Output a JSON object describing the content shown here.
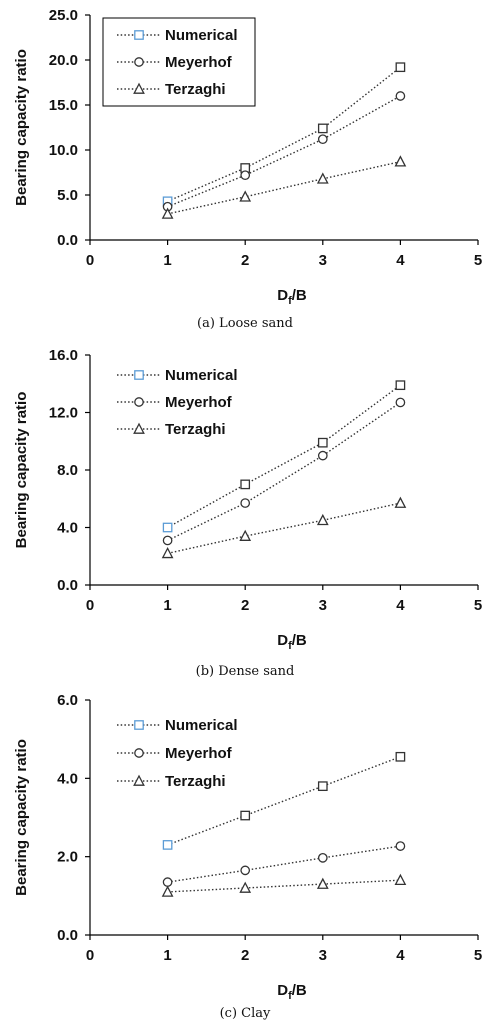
{
  "captions": [
    "(a) Loose sand",
    "(b) Dense sand",
    "(c) Clay"
  ],
  "chart_data": [
    {
      "type": "line",
      "caption": "(a) Loose sand",
      "xlabel_main": "D",
      "xlabel_sub": "f",
      "xlabel_tail": "/B",
      "ylabel": "Bearing capacity ratio",
      "xlim": [
        0,
        5
      ],
      "ylim": [
        0,
        25
      ],
      "x_ticks": [
        "0",
        "1",
        "2",
        "3",
        "4",
        "5"
      ],
      "y_ticks": [
        "0.0",
        "5.0",
        "10.0",
        "15.0",
        "20.0",
        "25.0"
      ],
      "y_tick_values": [
        0,
        5,
        10,
        15,
        20,
        25
      ],
      "legend_placement": "top-left (boxed)",
      "x": [
        1,
        2,
        3,
        4
      ],
      "series": [
        {
          "name": "Numerical",
          "marker": "square",
          "values": [
            4.3,
            8.0,
            12.4,
            19.2
          ]
        },
        {
          "name": "Meyerhof",
          "marker": "circle",
          "values": [
            3.7,
            7.2,
            11.2,
            16.0
          ]
        },
        {
          "name": "Terzaghi",
          "marker": "triangle",
          "values": [
            2.9,
            4.8,
            6.8,
            8.7
          ]
        }
      ]
    },
    {
      "type": "line",
      "caption": "(b) Dense sand",
      "xlabel_main": "D",
      "xlabel_sub": "f",
      "xlabel_tail": "/B",
      "ylabel": "Bearing capacity ratio",
      "xlim": [
        0,
        5
      ],
      "ylim": [
        0,
        16
      ],
      "x_ticks": [
        "0",
        "1",
        "2",
        "3",
        "4",
        "5"
      ],
      "y_ticks": [
        "0.0",
        "4.0",
        "8.0",
        "12.0",
        "16.0"
      ],
      "y_tick_values": [
        0,
        4,
        8,
        12,
        16
      ],
      "legend_placement": "top-left",
      "x": [
        1,
        2,
        3,
        4
      ],
      "series": [
        {
          "name": "Numerical",
          "marker": "square",
          "values": [
            4.0,
            7.0,
            9.9,
            13.9
          ]
        },
        {
          "name": "Meyerhof",
          "marker": "circle",
          "values": [
            3.1,
            5.7,
            9.0,
            12.7
          ]
        },
        {
          "name": "Terzaghi",
          "marker": "triangle",
          "values": [
            2.2,
            3.4,
            4.5,
            5.7
          ]
        }
      ]
    },
    {
      "type": "line",
      "caption": "(c) Clay",
      "xlabel_main": "D",
      "xlabel_sub": "f",
      "xlabel_tail": "/B",
      "ylabel": "Bearing capacity ratio",
      "xlim": [
        0,
        5
      ],
      "ylim": [
        0,
        6
      ],
      "x_ticks": [
        "0",
        "1",
        "2",
        "3",
        "4",
        "5"
      ],
      "y_ticks": [
        "0.0",
        "2.0",
        "4.0",
        "6.0"
      ],
      "y_tick_values": [
        0,
        2,
        4,
        6
      ],
      "legend_placement": "top-left",
      "x": [
        1,
        2,
        3,
        4
      ],
      "series": [
        {
          "name": "Numerical",
          "marker": "square",
          "values": [
            2.3,
            3.05,
            3.8,
            4.55
          ]
        },
        {
          "name": "Meyerhof",
          "marker": "circle",
          "values": [
            1.35,
            1.65,
            1.97,
            2.27
          ]
        },
        {
          "name": "Terzaghi",
          "marker": "triangle",
          "values": [
            1.1,
            1.2,
            1.3,
            1.4
          ]
        }
      ]
    }
  ],
  "colors": {
    "first_point_marker": "#5b9bd5",
    "marker": "#333333",
    "line": "#333333",
    "axis": "#000000"
  }
}
